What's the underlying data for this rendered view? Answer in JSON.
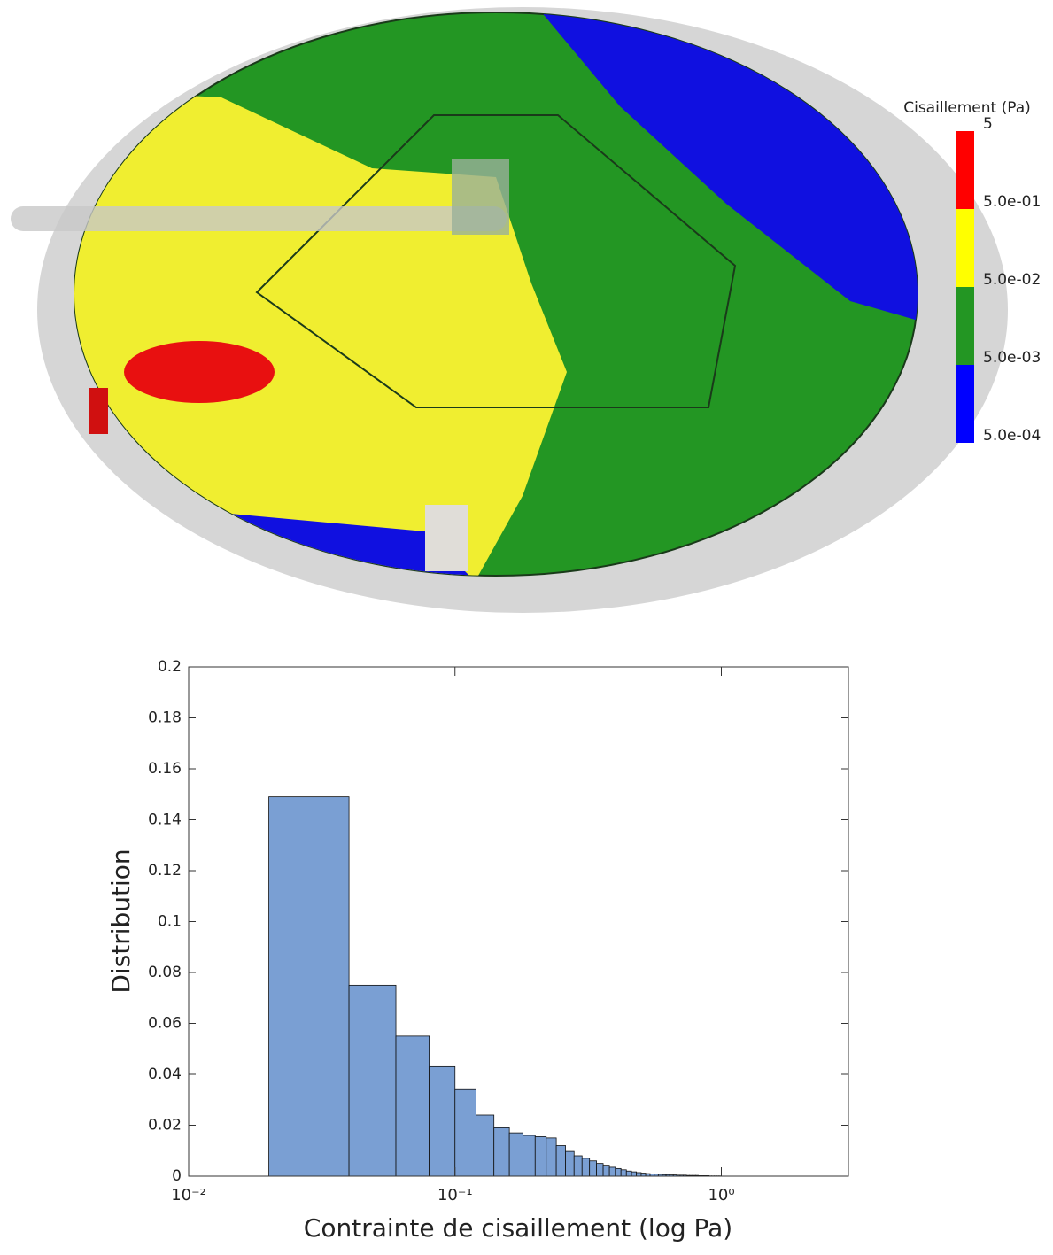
{
  "chart_data": [
    {
      "type": "colorbar",
      "title": "Cisaillement (Pa)",
      "scale": "log",
      "ylim": [
        0.0005,
        5
      ],
      "ticks": [
        {
          "value": 0.0005,
          "label": "5.0e-04"
        },
        {
          "value": 0.005,
          "label": "5.0e-03"
        },
        {
          "value": 0.05,
          "label": "5.0e-02"
        },
        {
          "value": 0.5,
          "label": "5.0e-01"
        },
        5
      ],
      "colors": [
        "#0000ff",
        "#239623",
        "#ffff00",
        "#ff0000"
      ]
    },
    {
      "type": "histogram",
      "xlabel": "Contrainte de cisaillement (log Pa)",
      "ylabel": "Distribution",
      "xscale": "log",
      "xlim": [
        0.01,
        3
      ],
      "ylim": [
        0,
        0.2
      ],
      "xticks": [
        {
          "value": 0.01,
          "label": "10⁻²"
        },
        {
          "value": 0.1,
          "label": "10⁻¹"
        },
        {
          "value": 1,
          "label": "10⁰"
        }
      ],
      "yticks": [
        0,
        0.02,
        0.04,
        0.06,
        0.08,
        0.1,
        0.12,
        0.14,
        0.16,
        0.18,
        0.2
      ],
      "color": "#7a9fd3",
      "bins": [
        0.02,
        0.04,
        0.06,
        0.08,
        0.1,
        0.12,
        0.14,
        0.16,
        0.18,
        0.2,
        0.22,
        0.24,
        0.26,
        0.28,
        0.3,
        0.32,
        0.34,
        0.36,
        0.38,
        0.4,
        0.42,
        0.44,
        0.46,
        0.48,
        0.5,
        0.52,
        0.54,
        0.56,
        0.58,
        0.6,
        0.62,
        0.64,
        0.66,
        0.68,
        0.7,
        0.72,
        0.74,
        0.76,
        0.78,
        0.8,
        0.82,
        0.84,
        0.86,
        0.88,
        0.9,
        0.92,
        0.94,
        0.96,
        0.98,
        1.0
      ],
      "values": [
        0.149,
        0.075,
        0.055,
        0.043,
        0.034,
        0.024,
        0.019,
        0.017,
        0.016,
        0.0155,
        0.015,
        0.012,
        0.0097,
        0.008,
        0.007,
        0.006,
        0.005,
        0.0043,
        0.0035,
        0.003,
        0.0025,
        0.002,
        0.0017,
        0.0014,
        0.0012,
        0.001,
        0.0009,
        0.0008,
        0.0007,
        0.0006,
        0.0006,
        0.0005,
        0.0005,
        0.0004,
        0.0004,
        0.0004,
        0.0003,
        0.0003,
        0.0003,
        0.0003,
        0.0002,
        0.0002,
        0.0002,
        0.0002,
        0.0001,
        0.0001,
        0.0001,
        0.0001,
        0.0001
      ]
    }
  ]
}
